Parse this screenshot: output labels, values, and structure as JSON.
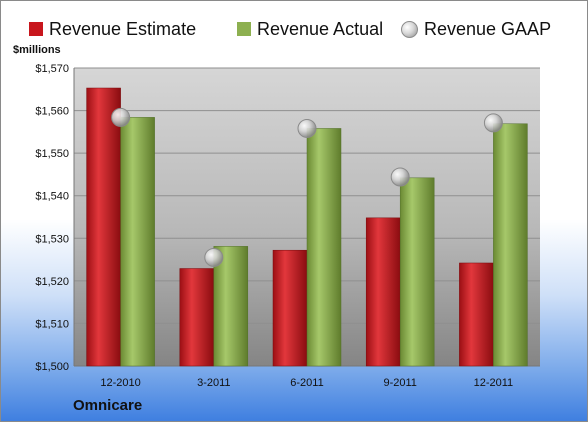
{
  "legend": {
    "items": [
      {
        "label": "Revenue Estimate",
        "color": "#c8161d",
        "marker": "square"
      },
      {
        "label": "Revenue Actual",
        "color": "#8db050",
        "marker": "square"
      },
      {
        "label": "Revenue GAAP",
        "color": "#b0b0b0",
        "marker": "sphere"
      }
    ]
  },
  "unit_label": "$millions",
  "company": "Omnicare",
  "chart_data": {
    "type": "bar",
    "categories": [
      "12-2010",
      "3-2011",
      "6-2011",
      "9-2011",
      "12-2011"
    ],
    "series": [
      {
        "name": "Revenue Estimate",
        "values": [
          1565.3,
          1522.9,
          1527.2,
          1534.8,
          1524.2
        ],
        "color": "#c8161d"
      },
      {
        "name": "Revenue Actual",
        "values": [
          1558.4,
          1528.1,
          1555.8,
          1544.2,
          1556.9
        ],
        "color": "#8db050"
      },
      {
        "name": "Revenue GAAP",
        "type": "scatter",
        "values": [
          1558.4,
          1525.5,
          1555.8,
          1544.4,
          1557.1
        ],
        "color": "#b0b0b0"
      }
    ],
    "yticks": [
      "$1,500",
      "$1,510",
      "$1,520",
      "$1,530",
      "$1,540",
      "$1,550",
      "$1,560",
      "$1,570"
    ],
    "ylim": [
      1500,
      1570
    ],
    "grid": true,
    "legend_position": "top"
  }
}
